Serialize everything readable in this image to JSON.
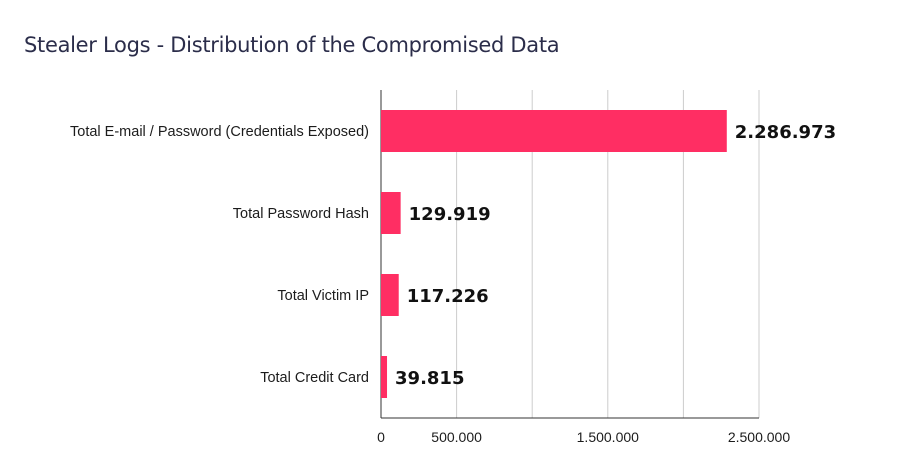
{
  "chart_data": {
    "type": "bar",
    "orientation": "horizontal",
    "title": "Stealer Logs - Distribution of the Compromised Data",
    "categories": [
      "Total E-mail / Password (Credentials Exposed)",
      "Total Password Hash",
      "Total Victim IP",
      "Total Credit Card"
    ],
    "values": [
      2286973,
      129919,
      117226,
      39815
    ],
    "value_labels": [
      "2.286.973",
      "129.919",
      "117.226",
      "39.815"
    ],
    "xlim": [
      0,
      2500000
    ],
    "gridlines": [
      0,
      500000,
      1000000,
      1500000,
      2000000,
      2500000
    ],
    "tick_labels": [
      "0",
      "500.000",
      "1.500.000",
      "2.500.000"
    ],
    "tick_values": [
      0,
      500000,
      1500000,
      2500000
    ],
    "xlabel": "",
    "ylabel": "",
    "grid": true,
    "legend": "none",
    "bar_color": "#ff2e63",
    "grid_color": "#cccccc",
    "axis_color": "#333333"
  }
}
